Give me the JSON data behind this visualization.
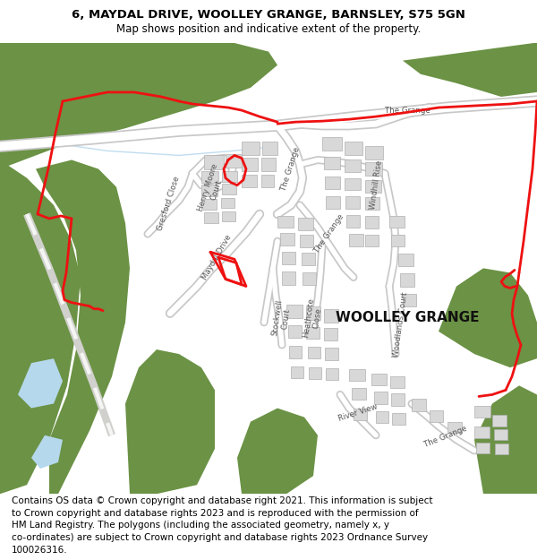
{
  "title_line1": "6, MAYDAL DRIVE, WOOLLEY GRANGE, BARNSLEY, S75 5GN",
  "title_line2": "Map shows position and indicative extent of the property.",
  "footer": "Contains OS data © Crown copyright and database right 2021. This information is subject\nto Crown copyright and database rights 2023 and is reproduced with the permission of\nHM Land Registry. The polygons (including the associated geometry, namely x, y\nco-ordinates) are subject to Crown copyright and database rights 2023 Ordnance Survey\n100026316.",
  "bg_color": "#ffffff",
  "map_bg": "#f2f2f0",
  "green_color": "#6b9245",
  "road_color": "#ffffff",
  "road_edge": "#c8c8c8",
  "building_fill": "#d8d8d8",
  "building_stroke": "#b0b0b0",
  "red_color": "#ee1111",
  "water_color": "#b5d8ec",
  "railway_color": "#e0e0dc",
  "title_fontsize": 9.5,
  "subtitle_fontsize": 8.5,
  "footer_fontsize": 7.5,
  "label_fontsize": 6.2,
  "woolley_fontsize": 11
}
